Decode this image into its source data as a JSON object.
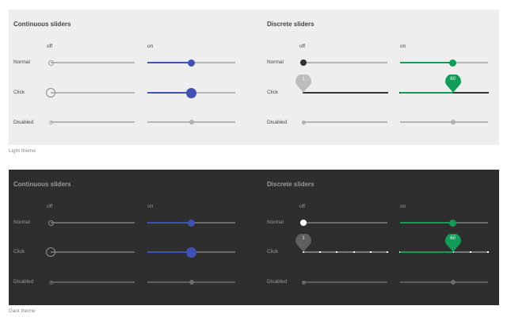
{
  "light_panel": {
    "continuous_title": "Continuous sliders",
    "discrete_title": "Discrete sliders",
    "off_label": "off",
    "on_label": "on",
    "row_normal": "Normal",
    "row_click": "Click",
    "row_disabled": "Disabled",
    "pin_left": "1",
    "pin_right": "60",
    "caption": "Light theme"
  },
  "dark_panel": {
    "continuous_title": "Continuous sliders",
    "discrete_title": "Discrete sliders",
    "off_label": "off",
    "on_label": "on",
    "row_normal": "Normal",
    "row_click": "Click",
    "row_disabled": "Disabled",
    "pin_left": "1",
    "pin_right": "60",
    "caption": "Dark theme"
  },
  "sliders": {
    "continuous_on_fraction": 0.5,
    "discrete_on_fraction": 0.6,
    "off_fraction": 0,
    "discrete_steps": 5
  },
  "colors": {
    "accent_blue": "#3f51b5",
    "accent_green": "#0f9d58",
    "light_bg": "#eeeeee",
    "dark_bg": "#2e2e2e"
  }
}
